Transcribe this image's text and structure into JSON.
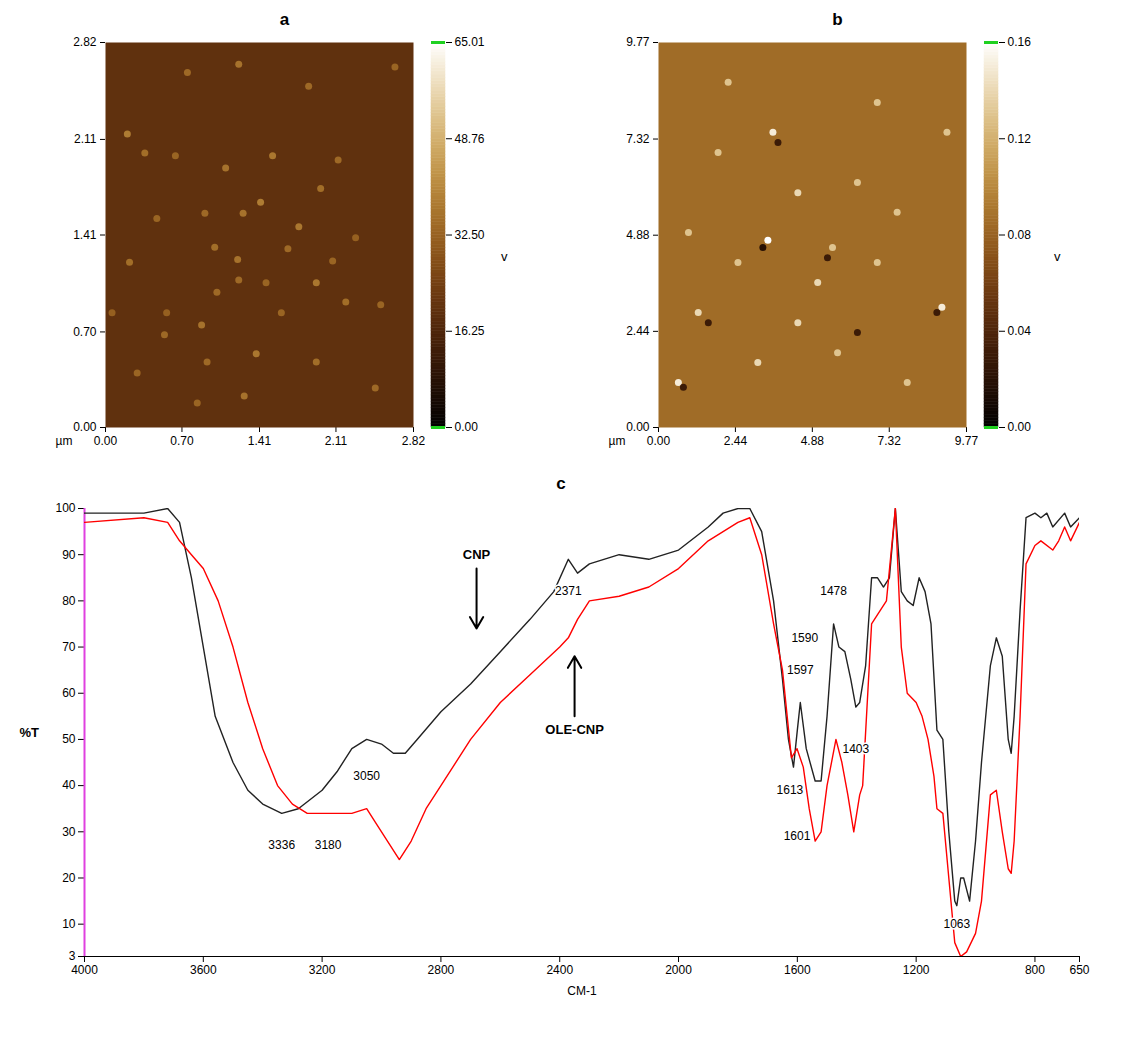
{
  "chart_data": [
    {
      "type": "image",
      "title": "a",
      "x_label": "µm",
      "xlim": [
        0,
        2.82
      ],
      "ylim": [
        0,
        2.82
      ],
      "xticks": [
        {
          "value": 0,
          "label": "0.00"
        },
        {
          "value": 0.7,
          "label": "0.70"
        },
        1.41,
        2.11,
        2.82
      ],
      "yticks": [
        {
          "value": 0,
          "label": "0.00"
        },
        {
          "value": 0.7,
          "label": "0.70"
        },
        1.41,
        2.11,
        2.82
      ],
      "background": 20,
      "points": {
        "x": [
          1.22,
          1.86,
          0.2,
          0.36,
          0.64,
          1.53,
          2.13,
          1.1,
          1.97,
          1.42,
          0.91,
          1.26,
          0.47,
          1.77,
          1.0,
          1.67,
          1.21,
          2.08,
          0.22,
          1.93,
          1.22,
          0.88,
          2.52,
          2.2,
          0.54,
          1.38,
          0.29,
          1.93,
          2.47,
          1.27,
          0.84,
          0.06,
          2.65,
          0.75,
          0.56,
          1.47,
          1.02,
          2.29,
          1.61,
          0.93
        ],
        "y": [
          2.66,
          2.5,
          2.15,
          2.01,
          1.99,
          1.99,
          1.96,
          1.9,
          1.75,
          1.65,
          1.57,
          1.57,
          1.53,
          1.47,
          1.32,
          1.31,
          1.23,
          1.22,
          1.21,
          1.06,
          1.08,
          0.75,
          0.9,
          0.92,
          0.68,
          0.54,
          0.4,
          0.48,
          0.29,
          0.23,
          0.18,
          0.84,
          2.64,
          2.6,
          0.84,
          1.06,
          0.99,
          1.39,
          0.84,
          0.48
        ],
        "z": [
          36,
          34,
          38,
          35,
          33,
          37,
          34,
          36,
          35,
          38,
          34,
          36,
          33,
          37,
          35,
          34,
          36,
          33,
          35,
          37,
          34,
          36,
          33,
          35,
          34,
          37,
          33,
          35,
          34,
          36,
          33,
          32,
          33,
          34,
          32,
          33,
          34,
          32,
          33,
          34
        ]
      },
      "colorbar": {
        "label": "v",
        "lim": [
          0,
          65.01
        ],
        "ticks": [
          {
            "value": 0,
            "label": "0.00"
          },
          16.25,
          {
            "value": 32.5,
            "label": "32.50"
          },
          48.76,
          65.01
        ]
      }
    },
    {
      "type": "image",
      "title": "b",
      "x_label": "µm",
      "xlim": [
        0,
        9.77
      ],
      "ylim": [
        0,
        9.77
      ],
      "xticks": [
        {
          "value": 0,
          "label": "0.00"
        },
        2.44,
        4.88,
        7.32,
        9.77
      ],
      "yticks": [
        {
          "value": 0,
          "label": "0.00"
        },
        2.44,
        4.88,
        7.32,
        9.77
      ],
      "background": 0.085,
      "points": {
        "x": [
          3.63,
          3.47,
          8.99,
          5.52,
          0.63,
          1.89,
          4.42,
          6.31,
          7.57,
          1.26,
          2.52,
          5.05,
          6.94,
          0.95,
          3.15,
          5.68,
          7.89,
          9.15,
          6.94,
          2.21,
          4.42,
          3.31,
          3.79,
          8.83,
          0.79,
          5.36,
          1.58,
          6.31
        ],
        "y": [
          7.49,
          4.75,
          3.05,
          4.57,
          1.14,
          6.98,
          5.96,
          6.22,
          5.46,
          2.92,
          4.19,
          3.68,
          4.19,
          4.95,
          1.65,
          1.9,
          1.14,
          7.49,
          8.25,
          8.76,
          2.66,
          4.57,
          7.23,
          2.92,
          1.02,
          4.31,
          2.66,
          2.41
        ],
        "z": [
          0.15,
          0.16,
          0.15,
          0.13,
          0.15,
          0.13,
          0.14,
          0.13,
          0.13,
          0.14,
          0.13,
          0.14,
          0.13,
          0.13,
          0.14,
          0.13,
          0.13,
          0.13,
          0.13,
          0.13,
          0.14,
          0.02,
          0.03,
          0.03,
          0.03,
          0.03,
          0.03,
          0.03
        ]
      },
      "colorbar": {
        "label": "v",
        "lim": [
          0,
          0.16
        ],
        "ticks": [
          {
            "value": 0,
            "label": "0.00"
          },
          0.04,
          0.08,
          0.12,
          0.16
        ]
      }
    },
    {
      "type": "line",
      "title": "c",
      "x_label": "CM-1",
      "y_label": "%T",
      "xlim": [
        4000,
        650
      ],
      "ylim": [
        3,
        100
      ],
      "xticks": [
        4000,
        3600,
        3200,
        2800,
        2400,
        2000,
        1600,
        1200,
        800,
        650
      ],
      "yticks": [
        3,
        10,
        20,
        30,
        40,
        50,
        60,
        70,
        80,
        90,
        100
      ],
      "series": [
        {
          "name": "CNP",
          "color": "#222222",
          "tag": {
            "x": 2680,
            "y": 90,
            "arrow": "down"
          },
          "x": [
            4000,
            3900,
            3800,
            3720,
            3680,
            3640,
            3600,
            3560,
            3500,
            3450,
            3400,
            3336,
            3280,
            3200,
            3150,
            3100,
            3050,
            3000,
            2960,
            2920,
            2880,
            2800,
            2700,
            2600,
            2500,
            2420,
            2371,
            2340,
            2300,
            2200,
            2100,
            2000,
            1900,
            1850,
            1800,
            1760,
            1720,
            1680,
            1650,
            1630,
            1613,
            1600,
            1590,
            1570,
            1540,
            1520,
            1500,
            1478,
            1460,
            1440,
            1420,
            1403,
            1390,
            1370,
            1350,
            1330,
            1310,
            1290,
            1270,
            1250,
            1230,
            1210,
            1190,
            1170,
            1150,
            1130,
            1110,
            1090,
            1070,
            1063,
            1050,
            1040,
            1020,
            1000,
            980,
            950,
            930,
            910,
            890,
            880,
            870,
            850,
            830,
            800,
            780,
            760,
            740,
            700,
            680,
            650
          ],
          "values": [
            99,
            99,
            99,
            100,
            97,
            85,
            70,
            55,
            45,
            39,
            36,
            34,
            35,
            39,
            43,
            48,
            50,
            49,
            47,
            47,
            50,
            56,
            62,
            69,
            76,
            82,
            89,
            86,
            88,
            90,
            89,
            91,
            96,
            99,
            100,
            100,
            95,
            80,
            63,
            50,
            44,
            52,
            58,
            48,
            41,
            41,
            55,
            75,
            70,
            69,
            63,
            57,
            58,
            66,
            85,
            85,
            83,
            85,
            100,
            82,
            80,
            79,
            85,
            82,
            75,
            52,
            50,
            30,
            15,
            14,
            20,
            20,
            15,
            28,
            45,
            66,
            72,
            68,
            50,
            47,
            55,
            78,
            98,
            99,
            98,
            99,
            96,
            99,
            96,
            98
          ]
        },
        {
          "name": "OLE-CNP",
          "color": "#ff0000",
          "tag": {
            "x": 2350,
            "y": 52,
            "arrow": "up"
          },
          "x": [
            4000,
            3800,
            3720,
            3680,
            3640,
            3600,
            3550,
            3500,
            3450,
            3400,
            3350,
            3300,
            3250,
            3180,
            3100,
            3050,
            3020,
            2980,
            2940,
            2900,
            2850,
            2800,
            2700,
            2600,
            2500,
            2400,
            2371,
            2340,
            2300,
            2200,
            2100,
            2000,
            1900,
            1800,
            1760,
            1720,
            1680,
            1650,
            1620,
            1601,
            1580,
            1560,
            1540,
            1520,
            1500,
            1470,
            1450,
            1430,
            1410,
            1390,
            1380,
            1350,
            1330,
            1300,
            1270,
            1250,
            1230,
            1200,
            1180,
            1160,
            1140,
            1130,
            1110,
            1090,
            1070,
            1050,
            1030,
            1000,
            980,
            950,
            930,
            910,
            890,
            880,
            870,
            850,
            830,
            800,
            780,
            740,
            720,
            700,
            680,
            650
          ],
          "values": [
            97,
            98,
            97,
            93,
            90,
            87,
            80,
            70,
            58,
            48,
            40,
            36,
            34,
            34,
            34,
            35,
            32,
            28,
            24,
            28,
            35,
            40,
            50,
            58,
            64,
            70,
            72,
            76,
            80,
            81,
            83,
            87,
            93,
            97,
            98,
            90,
            75,
            65,
            46,
            48,
            44,
            35,
            28,
            30,
            40,
            50,
            45,
            38,
            30,
            38,
            40,
            75,
            77,
            80,
            100,
            70,
            60,
            58,
            55,
            50,
            42,
            35,
            34,
            20,
            6,
            3,
            4,
            8,
            15,
            38,
            39,
            30,
            22,
            21,
            28,
            55,
            88,
            92,
            93,
            91,
            93,
            96,
            93,
            97
          ]
        }
      ],
      "annotations": [
        {
          "text": "3336",
          "x": 3336,
          "y": 27
        },
        {
          "text": "3180",
          "x": 3180,
          "y": 27
        },
        {
          "text": "3050",
          "x": 3050,
          "y": 42
        },
        {
          "text": "2371",
          "x": 2371,
          "y": 82
        },
        {
          "text": "1590",
          "x": 1575,
          "y": 72
        },
        {
          "text": "1597",
          "x": 1590,
          "y": 65
        },
        {
          "text": "1613",
          "x": 1625,
          "y": 39
        },
        {
          "text": "1601",
          "x": 1601,
          "y": 29
        },
        {
          "text": "1478",
          "x": 1478,
          "y": 82
        },
        {
          "text": "1403",
          "x": 1403,
          "y": 48
        },
        {
          "text": "1063",
          "x": 1063,
          "y": 10
        }
      ]
    }
  ]
}
